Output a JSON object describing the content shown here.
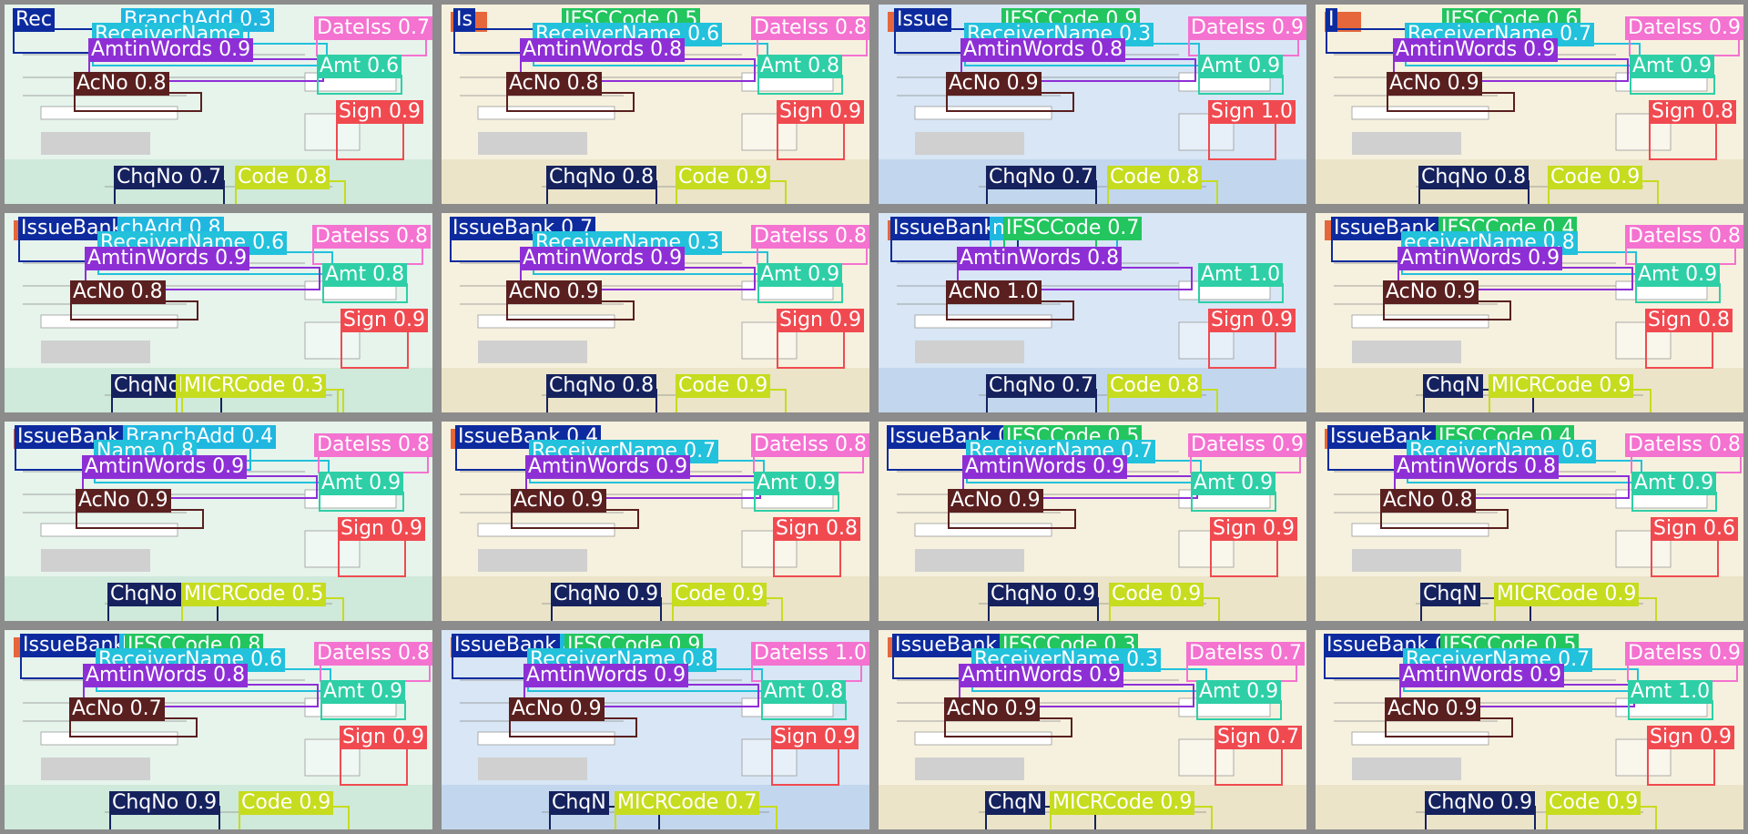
{
  "class_colors": {
    "IssueBank": "#0d2b9e",
    "BranchAdd": "#1fb7e0",
    "IFSCCode": "#22c55e",
    "ReceiverName": "#22c1dc",
    "AmtinWords": "#8e2fd6",
    "DateIss": "#f472d0",
    "Amt": "#2ecfa6",
    "AcNo": "#5a1f1f",
    "Sign": "#f04a50",
    "ChqNo": "#15225e",
    "Code": "#c6dc1e",
    "MICRCode": "#c6dc1e"
  },
  "cheque_styles": {
    "green": {
      "bg": "#e6f4ec",
      "stripe": "#cfe9da"
    },
    "cream": {
      "bg": "#f6f1de",
      "stripe": "#ebe4c8"
    },
    "blue": {
      "bg": "#d8e6f5",
      "stripe": "#c2d7ee"
    }
  },
  "cells": [
    {
      "style": "green",
      "labels": [
        {
          "c": "IssueBank",
          "t": "Rec"
        },
        {
          "c": "BranchAdd",
          "t": "BranchAdd 0.3"
        },
        {
          "c": "ReceiverName",
          "t": "ReceiverName"
        },
        {
          "c": "AmtinWords",
          "t": "AmtinWords 0.9"
        },
        {
          "c": "DateIss",
          "t": "DateIss 0.7"
        },
        {
          "c": "Amt",
          "t": "Amt 0.6"
        },
        {
          "c": "AcNo",
          "t": "AcNo 0.8"
        },
        {
          "c": "Sign",
          "t": "Sign 0.9"
        },
        {
          "c": "ChqNo",
          "t": "ChqNo 0.7"
        },
        {
          "c": "Code",
          "t": "Code 0.8"
        }
      ]
    },
    {
      "style": "cream",
      "labels": [
        {
          "c": "IssueBank",
          "t": "Is"
        },
        {
          "c": "IFSCCode",
          "t": "IFSCCode 0.5"
        },
        {
          "c": "ReceiverName",
          "t": "ReceiverName 0.6"
        },
        {
          "c": "AmtinWords",
          "t": "AmtinWords 0.8"
        },
        {
          "c": "DateIss",
          "t": "DateIss 0.8"
        },
        {
          "c": "Amt",
          "t": "Amt 0.8"
        },
        {
          "c": "AcNo",
          "t": "AcNo 0.8"
        },
        {
          "c": "Sign",
          "t": "Sign 0.9"
        },
        {
          "c": "ChqNo",
          "t": "ChqNo 0.8"
        },
        {
          "c": "Code",
          "t": "Code 0.9"
        }
      ]
    },
    {
      "style": "blue",
      "labels": [
        {
          "c": "IssueBank",
          "t": "Issue"
        },
        {
          "c": "IFSCCode",
          "t": "IFSCCode 0.9"
        },
        {
          "c": "ReceiverName",
          "t": "ReceiverName 0.3"
        },
        {
          "c": "AmtinWords",
          "t": "AmtinWords 0.8"
        },
        {
          "c": "DateIss",
          "t": "DateIss 0.9"
        },
        {
          "c": "Amt",
          "t": "Amt 0.9"
        },
        {
          "c": "AcNo",
          "t": "AcNo 0.9"
        },
        {
          "c": "Sign",
          "t": "Sign 1.0"
        },
        {
          "c": "ChqNo",
          "t": "ChqNo 0.7"
        },
        {
          "c": "Code",
          "t": "Code 0.8"
        }
      ]
    },
    {
      "style": "cream",
      "labels": [
        {
          "c": "IssueBank",
          "t": "I"
        },
        {
          "c": "IFSCCode",
          "t": "IFSCCode 0.6"
        },
        {
          "c": "ReceiverName",
          "t": "ReceiverName 0.7"
        },
        {
          "c": "AmtinWords",
          "t": "AmtinWords 0.9"
        },
        {
          "c": "DateIss",
          "t": "DateIss 0.9"
        },
        {
          "c": "Amt",
          "t": "Amt 0.9"
        },
        {
          "c": "AcNo",
          "t": "AcNo 0.9"
        },
        {
          "c": "Sign",
          "t": "Sign 0.8"
        },
        {
          "c": "ChqNo",
          "t": "ChqNo 0.8"
        },
        {
          "c": "Code",
          "t": "Code 0.9"
        }
      ]
    },
    {
      "style": "green",
      "labels": [
        {
          "c": "IssueBank",
          "t": "IssueBank 0.3"
        },
        {
          "c": "BranchAdd",
          "t": "chAdd 0.8"
        },
        {
          "c": "ReceiverName",
          "t": "ReceiverName 0.6"
        },
        {
          "c": "AmtinWords",
          "t": "AmtinWords 0.9"
        },
        {
          "c": "DateIss",
          "t": "DateIss 0.8"
        },
        {
          "c": "Amt",
          "t": "Amt 0.8"
        },
        {
          "c": "AcNo",
          "t": "AcNo 0.8"
        },
        {
          "c": "Sign",
          "t": "Sign 0.9"
        },
        {
          "c": "ChqNo",
          "t": "ChqNo"
        },
        {
          "c": "MICRCode",
          "t": "MICR"
        },
        {
          "c": "MICRCode",
          "t": "MICRCode 0.3"
        }
      ]
    },
    {
      "style": "cream",
      "labels": [
        {
          "c": "IssueBank",
          "t": "IssueBank 0.7"
        },
        {
          "c": "ReceiverName",
          "t": "ReceiverName 0.3"
        },
        {
          "c": "AmtinWords",
          "t": "AmtinWords 0.9"
        },
        {
          "c": "DateIss",
          "t": "DateIss 0.8"
        },
        {
          "c": "Amt",
          "t": "Amt 0.9"
        },
        {
          "c": "AcNo",
          "t": "AcNo 0.9"
        },
        {
          "c": "Sign",
          "t": "Sign 0.9"
        },
        {
          "c": "ChqNo",
          "t": "ChqNo 0.8"
        },
        {
          "c": "Code",
          "t": "Code 0.9"
        }
      ]
    },
    {
      "style": "blue",
      "labels": [
        {
          "c": "IssueBank",
          "t": "IssueBank 0.6"
        },
        {
          "c": "BranchAdd",
          "t": "nchAdd 0.8"
        },
        {
          "c": "IFSCCode",
          "t": "IFSCCode 0.7"
        },
        {
          "c": "AmtinWords",
          "t": "AmtinWords 0.8"
        },
        {
          "c": "Amt",
          "t": "Amt 1.0"
        },
        {
          "c": "AcNo",
          "t": "AcNo 1.0"
        },
        {
          "c": "Sign",
          "t": "Sign 0.9"
        },
        {
          "c": "ChqNo",
          "t": "ChqNo 0.7"
        },
        {
          "c": "Code",
          "t": "Code 0.8"
        }
      ]
    },
    {
      "style": "cream",
      "labels": [
        {
          "c": "IssueBank",
          "t": "IssueBank 0.5"
        },
        {
          "c": "IFSCCode",
          "t": "IFSCCode 0.4"
        },
        {
          "c": "ReceiverName",
          "t": "eceiverName 0.8"
        },
        {
          "c": "AmtinWords",
          "t": "AmtinWords 0.9"
        },
        {
          "c": "DateIss",
          "t": "DateIss 0.8"
        },
        {
          "c": "Amt",
          "t": "Amt 0.9"
        },
        {
          "c": "AcNo",
          "t": "AcNo 0.9"
        },
        {
          "c": "Sign",
          "t": "Sign 0.8"
        },
        {
          "c": "ChqNo",
          "t": "ChqN"
        },
        {
          "c": "MICRCode",
          "t": "MICRCode 0.9"
        }
      ]
    },
    {
      "style": "green",
      "labels": [
        {
          "c": "IssueBank",
          "t": "IssueBank 0.4"
        },
        {
          "c": "BranchAdd",
          "t": "BranchAdd 0.4"
        },
        {
          "c": "ReceiverName",
          "t": "Name 0.8"
        },
        {
          "c": "AmtinWords",
          "t": "AmtinWords 0.9"
        },
        {
          "c": "DateIss",
          "t": "DateIss 0.8"
        },
        {
          "c": "Amt",
          "t": "Amt 0.9"
        },
        {
          "c": "AcNo",
          "t": "AcNo 0.9"
        },
        {
          "c": "Sign",
          "t": "Sign 0.9"
        },
        {
          "c": "ChqNo",
          "t": "ChqNo 0.7"
        },
        {
          "c": "MICRCode",
          "t": "MICRCode 0.5"
        }
      ]
    },
    {
      "style": "cream",
      "labels": [
        {
          "c": "IssueBank",
          "t": "IssueBank 0.4"
        },
        {
          "c": "ReceiverName",
          "t": "ReceiverName 0.7"
        },
        {
          "c": "AmtinWords",
          "t": "AmtinWords 0.9"
        },
        {
          "c": "DateIss",
          "t": "DateIss 0.8"
        },
        {
          "c": "Amt",
          "t": "Amt 0.9"
        },
        {
          "c": "AcNo",
          "t": "AcNo 0.9"
        },
        {
          "c": "Sign",
          "t": "Sign 0.8"
        },
        {
          "c": "ChqNo",
          "t": "ChqNo 0.9"
        },
        {
          "c": "Code",
          "t": "Code 0.9"
        }
      ]
    },
    {
      "style": "cream",
      "labels": [
        {
          "c": "IssueBank",
          "t": "IssueBank 0.6"
        },
        {
          "c": "IFSCCode",
          "t": "IFSCCode 0.5"
        },
        {
          "c": "ReceiverName",
          "t": "ReceiverName 0.7"
        },
        {
          "c": "AmtinWords",
          "t": "AmtinWords 0.9"
        },
        {
          "c": "DateIss",
          "t": "DateIss 0.9"
        },
        {
          "c": "Amt",
          "t": "Amt 0.9"
        },
        {
          "c": "AcNo",
          "t": "AcNo 0.9"
        },
        {
          "c": "Sign",
          "t": "Sign 0.9"
        },
        {
          "c": "ChqNo",
          "t": "ChqNo 0.9"
        },
        {
          "c": "Code",
          "t": "Code 0.9"
        }
      ]
    },
    {
      "style": "cream",
      "labels": [
        {
          "c": "IssueBank",
          "t": "IssueBank 0.6"
        },
        {
          "c": "IFSCCode",
          "t": "IFSCCode 0.4"
        },
        {
          "c": "ReceiverName",
          "t": "ReceiverName 0.6"
        },
        {
          "c": "AmtinWords",
          "t": "AmtinWords 0.8"
        },
        {
          "c": "DateIss",
          "t": "DateIss 0.8"
        },
        {
          "c": "Amt",
          "t": "Amt 0.9"
        },
        {
          "c": "AcNo",
          "t": "AcNo 0.8"
        },
        {
          "c": "Sign",
          "t": "Sign 0.6"
        },
        {
          "c": "ChqNo",
          "t": "ChqN"
        },
        {
          "c": "MICRCode",
          "t": "MICRCode 0.9"
        }
      ]
    },
    {
      "style": "green",
      "labels": [
        {
          "c": "IssueBank",
          "t": "IssueBank 0.3"
        },
        {
          "c": "BranchAdd",
          "t": "hAdd 0.7"
        },
        {
          "c": "IFSCCode",
          "t": "IFSCCode 0.8"
        },
        {
          "c": "ReceiverName",
          "t": "ReceiverName 0.6"
        },
        {
          "c": "AmtinWords",
          "t": "AmtinWords 0.8"
        },
        {
          "c": "DateIss",
          "t": "DateIss 0.8"
        },
        {
          "c": "Amt",
          "t": "Amt 0.9"
        },
        {
          "c": "AcNo",
          "t": "AcNo 0.7"
        },
        {
          "c": "Sign",
          "t": "Sign 0.9"
        },
        {
          "c": "ChqNo",
          "t": "ChqNo 0.9"
        },
        {
          "c": "Code",
          "t": "Code 0.9"
        }
      ]
    },
    {
      "style": "blue",
      "labels": [
        {
          "c": "IssueBank",
          "t": "IssueBank 0.6"
        },
        {
          "c": "BranchAdd",
          "t": "anchAdd 1.0"
        },
        {
          "c": "IFSCCode",
          "t": "IFSCCode 0.9"
        },
        {
          "c": "ReceiverName",
          "t": "ReceiverName 0.8"
        },
        {
          "c": "AmtinWords",
          "t": "AmtinWords 0.9"
        },
        {
          "c": "DateIss",
          "t": "DateIss 1.0"
        },
        {
          "c": "Amt",
          "t": "Amt 0.8"
        },
        {
          "c": "AcNo",
          "t": "AcNo 0.9"
        },
        {
          "c": "Sign",
          "t": "Sign 0.9"
        },
        {
          "c": "ChqNo",
          "t": "ChqN"
        },
        {
          "c": "MICRCode",
          "t": "MICRCode 0.7"
        }
      ]
    },
    {
      "style": "cream",
      "labels": [
        {
          "c": "IssueBank",
          "t": "IssueBank 0.6"
        },
        {
          "c": "IFSCCode",
          "t": "IFSCCode 0.3"
        },
        {
          "c": "ReceiverName",
          "t": "ReceiverName 0.3"
        },
        {
          "c": "AmtinWords",
          "t": "AmtinWords 0.9"
        },
        {
          "c": "DateIss",
          "t": "DateIss 0.7"
        },
        {
          "c": "Amt",
          "t": "Amt 0.9"
        },
        {
          "c": "AcNo",
          "t": "AcNo 0.9"
        },
        {
          "c": "Sign",
          "t": "Sign 0.7"
        },
        {
          "c": "ChqNo",
          "t": "ChqN"
        },
        {
          "c": "MICRCode",
          "t": "MICRCode 0.9"
        }
      ]
    },
    {
      "style": "cream",
      "labels": [
        {
          "c": "IssueBank",
          "t": "IssueBank 0.7"
        },
        {
          "c": "IFSCCode",
          "t": "IFSCCode 0.5"
        },
        {
          "c": "ReceiverName",
          "t": "ReceiverName 0.7"
        },
        {
          "c": "AmtinWords",
          "t": "AmtinWords 0.9"
        },
        {
          "c": "DateIss",
          "t": "DateIss 0.9"
        },
        {
          "c": "Amt",
          "t": "Amt 1.0"
        },
        {
          "c": "AcNo",
          "t": "AcNo 0.9"
        },
        {
          "c": "Sign",
          "t": "Sign 0.9"
        },
        {
          "c": "ChqNo",
          "t": "ChqNo 0.9"
        },
        {
          "c": "Code",
          "t": "Code 0.9"
        }
      ]
    }
  ]
}
